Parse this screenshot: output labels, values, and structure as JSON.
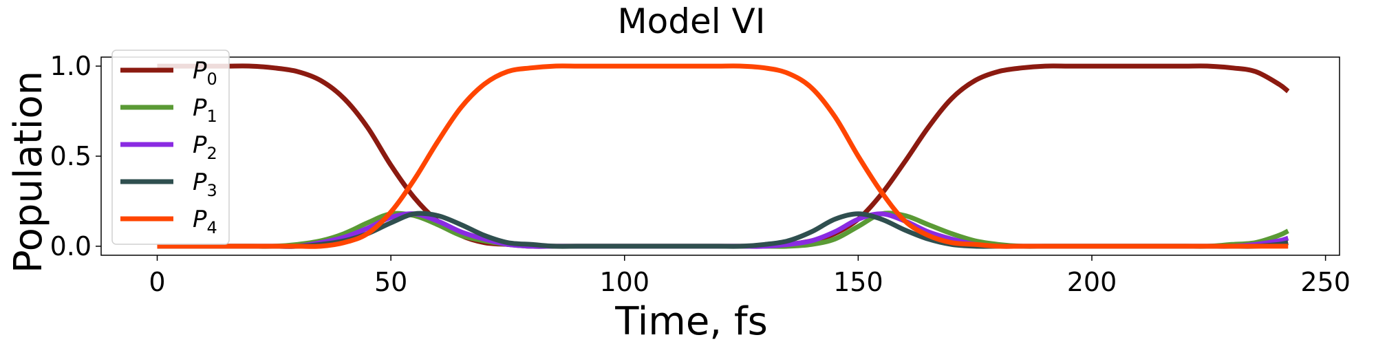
{
  "chart_data": {
    "type": "line",
    "title": "Model VI",
    "xlabel": "Time, fs",
    "ylabel": "Population",
    "xlim": [
      -12,
      253
    ],
    "ylim": [
      -0.05,
      1.05
    ],
    "xticks": [
      0,
      50,
      100,
      150,
      200,
      250
    ],
    "xtick_labels": [
      "0",
      "50",
      "100",
      "150",
      "200",
      "250"
    ],
    "yticks": [
      0.0,
      0.5,
      1.0
    ],
    "ytick_labels": [
      "0.0",
      "0.5",
      "1.0"
    ],
    "grid": false,
    "legend_position": "upper-left",
    "x": [
      0,
      5,
      10,
      15,
      20,
      25,
      30,
      35,
      40,
      45,
      50,
      55,
      60,
      65,
      70,
      75,
      80,
      85,
      90,
      95,
      100,
      105,
      110,
      115,
      120,
      125,
      130,
      135,
      140,
      145,
      150,
      155,
      160,
      165,
      170,
      175,
      180,
      185,
      190,
      195,
      200,
      205,
      210,
      215,
      220,
      225,
      230,
      235,
      240,
      242
    ],
    "series": [
      {
        "name": "P",
        "sub": "0",
        "color": "#8b1a10",
        "values": [
          1.0,
          1.0,
          1.0,
          1.0,
          1.0,
          0.99,
          0.97,
          0.92,
          0.82,
          0.66,
          0.45,
          0.27,
          0.14,
          0.06,
          0.02,
          0.01,
          0.0,
          0.0,
          0.0,
          0.0,
          0.0,
          0.0,
          0.0,
          0.0,
          0.0,
          0.0,
          0.0,
          0.01,
          0.03,
          0.07,
          0.15,
          0.29,
          0.47,
          0.66,
          0.82,
          0.92,
          0.97,
          0.99,
          1.0,
          1.0,
          1.0,
          1.0,
          1.0,
          1.0,
          1.0,
          1.0,
          0.99,
          0.97,
          0.9,
          0.86
        ]
      },
      {
        "name": "P",
        "sub": "1",
        "color": "#5a9a35",
        "values": [
          0.0,
          0.0,
          0.0,
          0.0,
          0.0,
          0.0,
          0.01,
          0.03,
          0.07,
          0.13,
          0.18,
          0.17,
          0.12,
          0.06,
          0.03,
          0.01,
          0.0,
          0.0,
          0.0,
          0.0,
          0.0,
          0.0,
          0.0,
          0.0,
          0.0,
          0.0,
          0.0,
          0.0,
          0.01,
          0.04,
          0.11,
          0.18,
          0.17,
          0.12,
          0.07,
          0.03,
          0.01,
          0.0,
          0.0,
          0.0,
          0.0,
          0.0,
          0.0,
          0.0,
          0.0,
          0.0,
          0.01,
          0.02,
          0.06,
          0.085
        ]
      },
      {
        "name": "P",
        "sub": "2",
        "color": "#8a2be2",
        "values": [
          0.0,
          0.0,
          0.0,
          0.0,
          0.0,
          0.0,
          0.0,
          0.02,
          0.05,
          0.1,
          0.16,
          0.18,
          0.14,
          0.08,
          0.04,
          0.01,
          0.0,
          0.0,
          0.0,
          0.0,
          0.0,
          0.0,
          0.0,
          0.0,
          0.0,
          0.0,
          0.0,
          0.01,
          0.03,
          0.08,
          0.15,
          0.18,
          0.14,
          0.08,
          0.04,
          0.01,
          0.0,
          0.0,
          0.0,
          0.0,
          0.0,
          0.0,
          0.0,
          0.0,
          0.0,
          0.0,
          0.0,
          0.01,
          0.03,
          0.045
        ]
      },
      {
        "name": "P",
        "sub": "3",
        "color": "#2f4f4f",
        "values": [
          0.0,
          0.0,
          0.0,
          0.0,
          0.0,
          0.0,
          0.0,
          0.01,
          0.03,
          0.07,
          0.13,
          0.18,
          0.17,
          0.12,
          0.06,
          0.02,
          0.01,
          0.0,
          0.0,
          0.0,
          0.0,
          0.0,
          0.0,
          0.0,
          0.0,
          0.0,
          0.01,
          0.03,
          0.08,
          0.15,
          0.18,
          0.15,
          0.09,
          0.04,
          0.01,
          0.0,
          0.0,
          0.0,
          0.0,
          0.0,
          0.0,
          0.0,
          0.0,
          0.0,
          0.0,
          0.0,
          0.0,
          0.0,
          0.01,
          0.02
        ]
      },
      {
        "name": "P",
        "sub": "4",
        "color": "#ff4500",
        "values": [
          0.0,
          0.0,
          0.0,
          0.0,
          0.0,
          0.0,
          0.0,
          0.0,
          0.02,
          0.07,
          0.19,
          0.37,
          0.58,
          0.77,
          0.9,
          0.97,
          0.99,
          1.0,
          1.0,
          1.0,
          1.0,
          1.0,
          1.0,
          1.0,
          1.0,
          1.0,
          0.99,
          0.96,
          0.88,
          0.72,
          0.5,
          0.3,
          0.14,
          0.06,
          0.02,
          0.01,
          0.0,
          0.0,
          0.0,
          0.0,
          0.0,
          0.0,
          0.0,
          0.0,
          0.0,
          0.0,
          0.0,
          0.0,
          0.0,
          0.0
        ]
      }
    ]
  }
}
